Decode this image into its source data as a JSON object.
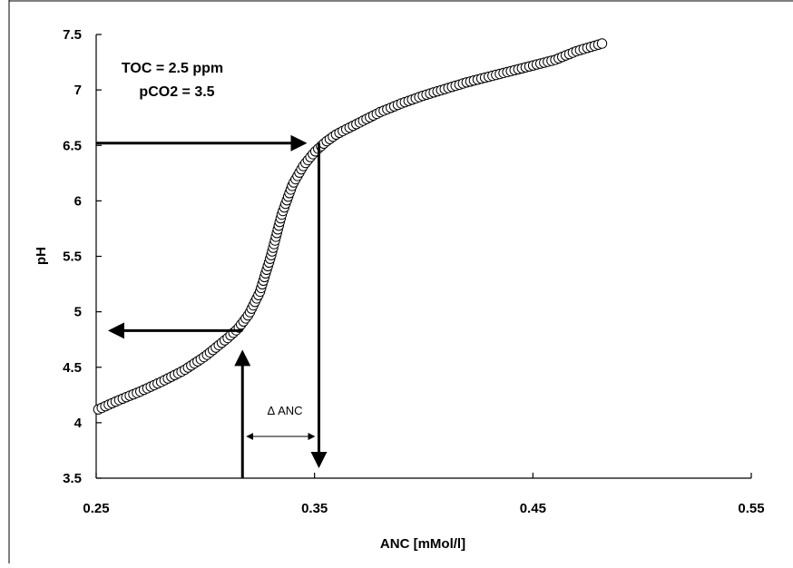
{
  "chart_data": {
    "type": "scatter",
    "xlabel": "ANC [mMol/l]",
    "ylabel": "pH",
    "xlim": [
      0.25,
      0.55
    ],
    "ylim": [
      3.5,
      7.5
    ],
    "x_ticks": [
      "0.25",
      "0.35",
      "0.45",
      "0.55"
    ],
    "y_ticks": [
      "3.5",
      "4",
      "4.5",
      "5",
      "5.5",
      "6",
      "6.5",
      "7",
      "7.5"
    ],
    "grid": false,
    "legend": "none",
    "marker": "open-circle",
    "series": [
      {
        "points": [
          [
            0.251,
            4.12
          ],
          [
            0.26,
            4.2
          ],
          [
            0.27,
            4.28
          ],
          [
            0.28,
            4.37
          ],
          [
            0.29,
            4.47
          ],
          [
            0.3,
            4.6
          ],
          [
            0.305,
            4.68
          ],
          [
            0.31,
            4.76
          ],
          [
            0.315,
            4.85
          ],
          [
            0.32,
            4.98
          ],
          [
            0.325,
            5.18
          ],
          [
            0.33,
            5.5
          ],
          [
            0.335,
            5.88
          ],
          [
            0.34,
            6.15
          ],
          [
            0.345,
            6.32
          ],
          [
            0.35,
            6.44
          ],
          [
            0.355,
            6.53
          ],
          [
            0.36,
            6.6
          ],
          [
            0.37,
            6.7
          ],
          [
            0.38,
            6.8
          ],
          [
            0.39,
            6.88
          ],
          [
            0.4,
            6.95
          ],
          [
            0.42,
            7.07
          ],
          [
            0.44,
            7.17
          ],
          [
            0.46,
            7.27
          ],
          [
            0.47,
            7.35
          ],
          [
            0.482,
            7.42
          ]
        ]
      }
    ],
    "annotations": {
      "toc_label": "TOC = 2.5 ppm",
      "pco2_label": "pCO2 = 3.5",
      "delta_label": "Δ ANC",
      "arrow_upper": {
        "y": 6.52,
        "x": 0.352
      },
      "arrow_lower": {
        "y": 4.83,
        "x": 0.317
      }
    }
  }
}
